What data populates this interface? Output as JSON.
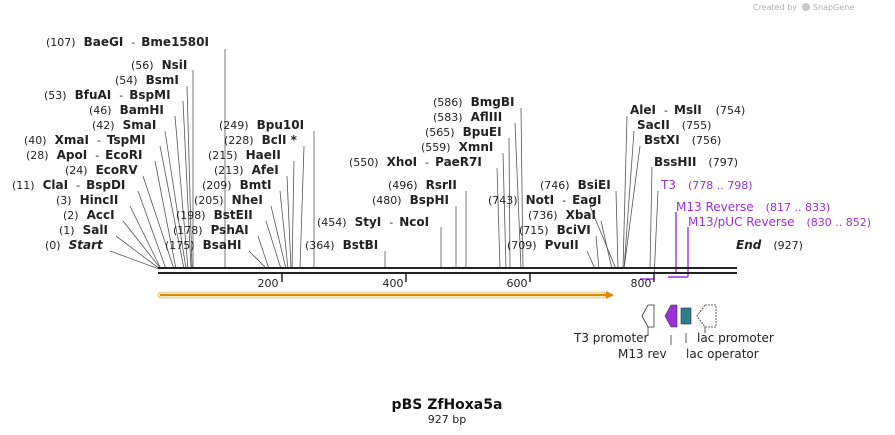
{
  "credit": {
    "text": "Created by",
    "brand": "SnapGene"
  },
  "plasmid": {
    "name": "pBS ZfHoxa5a",
    "length_label": "927 bp"
  },
  "axis_ticks": [
    "200",
    "400",
    "600",
    "800"
  ],
  "sites": [
    {
      "pos": "(107)",
      "name": "BaeGI",
      "extra": "Bme1580I"
    },
    {
      "pos": "(56)",
      "name": "NsiI"
    },
    {
      "pos": "(54)",
      "name": "BsmI"
    },
    {
      "pos": "(53)",
      "name": "BfuAI",
      "extra": "BspMI"
    },
    {
      "pos": "(46)",
      "name": "BamHI"
    },
    {
      "pos": "(42)",
      "name": "SmaI"
    },
    {
      "pos": "(40)",
      "name": "XmaI",
      "extra": "TspMI"
    },
    {
      "pos": "(28)",
      "name": "ApoI",
      "extra": "EcoRI"
    },
    {
      "pos": "(24)",
      "name": "EcoRV"
    },
    {
      "pos": "(11)",
      "name": "ClaI",
      "extra": "BspDI"
    },
    {
      "pos": "(3)",
      "name": "HincII"
    },
    {
      "pos": "(2)",
      "name": "AccI"
    },
    {
      "pos": "(1)",
      "name": "SalI"
    },
    {
      "pos": "(0)",
      "name": "Start"
    },
    {
      "pos": "(249)",
      "name": "Bpu10I"
    },
    {
      "pos": "(228)",
      "name": "BclI *"
    },
    {
      "pos": "(215)",
      "name": "HaeII"
    },
    {
      "pos": "(213)",
      "name": "AfeI"
    },
    {
      "pos": "(209)",
      "name": "BmtI"
    },
    {
      "pos": "(205)",
      "name": "NheI"
    },
    {
      "pos": "(198)",
      "name": "BstEII"
    },
    {
      "pos": "(178)",
      "name": "PshAI"
    },
    {
      "pos": "(175)",
      "name": "BsaHI"
    },
    {
      "pos": "(364)",
      "name": "BstBI"
    },
    {
      "pos": "(454)",
      "name": "StyI",
      "extra": "NcoI"
    },
    {
      "pos": "(586)",
      "name": "BmgBI"
    },
    {
      "pos": "(583)",
      "name": "AflIII"
    },
    {
      "pos": "(565)",
      "name": "BpuEI"
    },
    {
      "pos": "(559)",
      "name": "XmnI"
    },
    {
      "pos": "(550)",
      "name": "XhoI",
      "extra": "PaeR7I"
    },
    {
      "pos": "(496)",
      "name": "RsrII"
    },
    {
      "pos": "(480)",
      "name": "BspHI"
    },
    {
      "pos": "(743)",
      "name": "NotI",
      "extra": "EagI"
    },
    {
      "pos": "(746)",
      "name": "BsiEI"
    },
    {
      "pos": "(736)",
      "name": "XbaI"
    },
    {
      "pos": "(715)",
      "name": "BciVI"
    },
    {
      "pos": "(709)",
      "name": "PvuII"
    },
    {
      "pos": "(754)",
      "name": "AleI",
      "extra": "MslI"
    },
    {
      "pos": "(755)",
      "name": "SacII"
    },
    {
      "pos": "(756)",
      "name": "BstXI"
    },
    {
      "pos": "(797)",
      "name": "BssHII"
    },
    {
      "pos": "(927)",
      "name": "End"
    }
  ],
  "primers": [
    {
      "name": "T3",
      "range": "(778 .. 798)"
    },
    {
      "name": "M13 Reverse",
      "range": "(817 .. 833)"
    },
    {
      "name": "M13/pUC Reverse",
      "range": "(830 .. 852)"
    }
  ],
  "features": [
    "T3 promoter",
    "M13 rev",
    "lac promoter",
    "lac operator"
  ],
  "colors": {
    "primer": "#9b30d9",
    "orf": "#f5a623",
    "backbone": "#222222",
    "operator": "#2e7d8c"
  }
}
